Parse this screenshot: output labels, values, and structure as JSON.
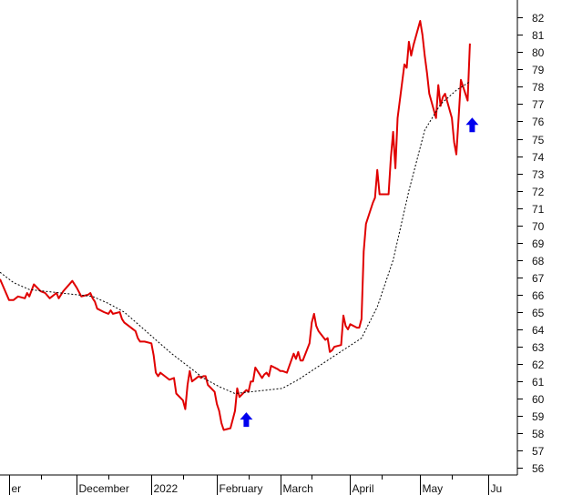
{
  "chart_data": {
    "type": "line",
    "ylim": [
      55.6,
      82.8
    ],
    "y_axis_position": "right",
    "y_ticks": [
      56,
      57,
      58,
      59,
      60,
      61,
      62,
      63,
      64,
      65,
      66,
      67,
      68,
      69,
      70,
      71,
      72,
      73,
      74,
      75,
      76,
      77,
      78,
      79,
      80,
      81,
      82
    ],
    "x_range": [
      "2021-10-28",
      "2022-06-14"
    ],
    "x_ticks": [
      {
        "date": "2021-11-01",
        "label": "er"
      },
      {
        "date": "2021-12-01",
        "label": "December"
      },
      {
        "date": "2022-01-03",
        "label": "2022"
      },
      {
        "date": "2022-02-01",
        "label": "February"
      },
      {
        "date": "2022-03-01",
        "label": "March"
      },
      {
        "date": "2022-04-01",
        "label": "April"
      },
      {
        "date": "2022-05-02",
        "label": "May"
      },
      {
        "date": "2022-06-01",
        "label": "Ju"
      }
    ],
    "x_minor_ticks": [
      "2021-11-15",
      "2021-12-15",
      "2022-01-17",
      "2022-02-15",
      "2022-03-15",
      "2022-04-15",
      "2022-05-16"
    ],
    "grid": false,
    "series": [
      {
        "style": "solid",
        "color": "#e00000",
        "points": [
          [
            "2021-10-28",
            66.9
          ],
          [
            "2021-10-29",
            66.6
          ],
          [
            "2021-11-01",
            65.7
          ],
          [
            "2021-11-03",
            65.7
          ],
          [
            "2021-11-05",
            65.9
          ],
          [
            "2021-11-08",
            65.8
          ],
          [
            "2021-11-09",
            66.1
          ],
          [
            "2021-11-10",
            65.9
          ],
          [
            "2021-11-12",
            66.6
          ],
          [
            "2021-11-15",
            66.2
          ],
          [
            "2021-11-17",
            66.1
          ],
          [
            "2021-11-19",
            65.8
          ],
          [
            "2021-11-22",
            66.1
          ],
          [
            "2021-11-23",
            65.8
          ],
          [
            "2021-11-25",
            66.2
          ],
          [
            "2021-11-29",
            66.8
          ],
          [
            "2021-12-01",
            66.4
          ],
          [
            "2021-12-03",
            65.9
          ],
          [
            "2021-12-06",
            66.0
          ],
          [
            "2021-12-07",
            66.1
          ],
          [
            "2021-12-08",
            65.8
          ],
          [
            "2021-12-09",
            65.6
          ],
          [
            "2021-12-10",
            65.2
          ],
          [
            "2021-12-13",
            65.0
          ],
          [
            "2021-12-15",
            64.9
          ],
          [
            "2021-12-16",
            65.1
          ],
          [
            "2021-12-17",
            64.9
          ],
          [
            "2021-12-20",
            65.0
          ],
          [
            "2021-12-21",
            64.6
          ],
          [
            "2021-12-22",
            64.4
          ],
          [
            "2021-12-23",
            64.3
          ],
          [
            "2021-12-27",
            63.9
          ],
          [
            "2021-12-28",
            63.5
          ],
          [
            "2021-12-29",
            63.3
          ],
          [
            "2021-12-31",
            63.3
          ],
          [
            "2022-01-03",
            63.2
          ],
          [
            "2022-01-04",
            62.5
          ],
          [
            "2022-01-05",
            61.5
          ],
          [
            "2022-01-06",
            61.3
          ],
          [
            "2022-01-07",
            61.5
          ],
          [
            "2022-01-10",
            61.2
          ],
          [
            "2022-01-11",
            61.1
          ],
          [
            "2022-01-13",
            61.2
          ],
          [
            "2022-01-14",
            60.3
          ],
          [
            "2022-01-17",
            59.9
          ],
          [
            "2022-01-18",
            59.4
          ],
          [
            "2022-01-19",
            60.8
          ],
          [
            "2022-01-20",
            61.6
          ],
          [
            "2022-01-21",
            61.0
          ],
          [
            "2022-01-24",
            61.3
          ],
          [
            "2022-01-25",
            61.2
          ],
          [
            "2022-01-26",
            61.3
          ],
          [
            "2022-01-27",
            61.3
          ],
          [
            "2022-01-28",
            60.8
          ],
          [
            "2022-01-31",
            60.4
          ],
          [
            "2022-02-01",
            59.7
          ],
          [
            "2022-02-02",
            59.3
          ],
          [
            "2022-02-03",
            58.6
          ],
          [
            "2022-02-04",
            58.2
          ],
          [
            "2022-02-07",
            58.3
          ],
          [
            "2022-02-08",
            58.8
          ],
          [
            "2022-02-09",
            59.3
          ],
          [
            "2022-02-10",
            60.6
          ],
          [
            "2022-02-11",
            60.1
          ],
          [
            "2022-02-14",
            60.5
          ],
          [
            "2022-02-15",
            60.4
          ],
          [
            "2022-02-16",
            61.0
          ],
          [
            "2022-02-17",
            61.0
          ],
          [
            "2022-02-18",
            61.8
          ],
          [
            "2022-02-21",
            61.2
          ],
          [
            "2022-02-22",
            61.4
          ],
          [
            "2022-02-23",
            61.5
          ],
          [
            "2022-02-24",
            61.3
          ],
          [
            "2022-02-25",
            61.9
          ],
          [
            "2022-02-28",
            61.7
          ],
          [
            "2022-03-01",
            61.6
          ],
          [
            "2022-03-02",
            61.6
          ],
          [
            "2022-03-04",
            61.5
          ],
          [
            "2022-03-07",
            62.6
          ],
          [
            "2022-03-08",
            62.3
          ],
          [
            "2022-03-09",
            62.7
          ],
          [
            "2022-03-10",
            62.2
          ],
          [
            "2022-03-11",
            62.2
          ],
          [
            "2022-03-14",
            63.2
          ],
          [
            "2022-03-15",
            64.4
          ],
          [
            "2022-03-16",
            64.9
          ],
          [
            "2022-03-17",
            64.2
          ],
          [
            "2022-03-18",
            63.9
          ],
          [
            "2022-03-21",
            63.4
          ],
          [
            "2022-03-22",
            63.5
          ],
          [
            "2022-03-23",
            62.7
          ],
          [
            "2022-03-24",
            62.8
          ],
          [
            "2022-03-25",
            63.0
          ],
          [
            "2022-03-28",
            63.1
          ],
          [
            "2022-03-29",
            64.8
          ],
          [
            "2022-03-30",
            64.2
          ],
          [
            "2022-03-31",
            64.0
          ],
          [
            "2022-04-01",
            64.3
          ],
          [
            "2022-04-04",
            64.1
          ],
          [
            "2022-04-05",
            64.1
          ],
          [
            "2022-04-06",
            64.6
          ],
          [
            "2022-04-07",
            68.5
          ],
          [
            "2022-04-08",
            70.1
          ],
          [
            "2022-04-11",
            71.3
          ],
          [
            "2022-04-12",
            71.6
          ],
          [
            "2022-04-13",
            73.2
          ],
          [
            "2022-04-14",
            71.8
          ],
          [
            "2022-04-18",
            71.8
          ],
          [
            "2022-04-19",
            73.9
          ],
          [
            "2022-04-20",
            75.4
          ],
          [
            "2022-04-21",
            73.3
          ],
          [
            "2022-04-22",
            76.2
          ],
          [
            "2022-04-25",
            79.3
          ],
          [
            "2022-04-26",
            79.1
          ],
          [
            "2022-04-27",
            80.6
          ],
          [
            "2022-04-28",
            79.8
          ],
          [
            "2022-04-29",
            80.4
          ],
          [
            "2022-05-02",
            81.8
          ],
          [
            "2022-05-03",
            81.0
          ],
          [
            "2022-05-04",
            79.8
          ],
          [
            "2022-05-05",
            78.8
          ],
          [
            "2022-05-06",
            77.6
          ],
          [
            "2022-05-09",
            76.2
          ],
          [
            "2022-05-10",
            78.1
          ],
          [
            "2022-05-11",
            76.9
          ],
          [
            "2022-05-12",
            77.4
          ],
          [
            "2022-05-13",
            77.6
          ],
          [
            "2022-05-16",
            76.2
          ],
          [
            "2022-05-17",
            74.8
          ],
          [
            "2022-05-18",
            74.1
          ],
          [
            "2022-05-19",
            76.2
          ],
          [
            "2022-05-20",
            78.4
          ],
          [
            "2022-05-23",
            77.2
          ],
          [
            "2022-05-24",
            80.5
          ]
        ]
      },
      {
        "style": "dashed",
        "color": "#000000",
        "points": [
          [
            "2021-10-28",
            67.3
          ],
          [
            "2021-11-03",
            66.7
          ],
          [
            "2021-11-10",
            66.3
          ],
          [
            "2021-11-17",
            66.2
          ],
          [
            "2021-11-24",
            66.1
          ],
          [
            "2021-12-01",
            66.0
          ],
          [
            "2021-12-08",
            65.9
          ],
          [
            "2021-12-15",
            65.5
          ],
          [
            "2021-12-22",
            65.0
          ],
          [
            "2021-12-29",
            64.2
          ],
          [
            "2022-01-05",
            63.4
          ],
          [
            "2022-01-12",
            62.6
          ],
          [
            "2022-01-19",
            61.9
          ],
          [
            "2022-01-26",
            61.2
          ],
          [
            "2022-02-02",
            60.7
          ],
          [
            "2022-02-09",
            60.3
          ],
          [
            "2022-02-16",
            60.4
          ],
          [
            "2022-02-23",
            60.5
          ],
          [
            "2022-03-02",
            60.6
          ],
          [
            "2022-03-09",
            61.1
          ],
          [
            "2022-03-16",
            61.7
          ],
          [
            "2022-03-23",
            62.3
          ],
          [
            "2022-03-30",
            62.9
          ],
          [
            "2022-04-06",
            63.5
          ],
          [
            "2022-04-13",
            65.3
          ],
          [
            "2022-04-20",
            68.0
          ],
          [
            "2022-04-27",
            72.0
          ],
          [
            "2022-05-04",
            75.5
          ],
          [
            "2022-05-11",
            77.0
          ],
          [
            "2022-05-18",
            77.8
          ],
          [
            "2022-05-24",
            78.3
          ]
        ]
      }
    ],
    "markers": [
      {
        "type": "up-arrow",
        "date": "2022-02-14",
        "value": 58.8,
        "color": "#0000ee"
      },
      {
        "type": "up-arrow",
        "date": "2022-05-25",
        "value": 75.8,
        "color": "#0000ee"
      }
    ]
  }
}
